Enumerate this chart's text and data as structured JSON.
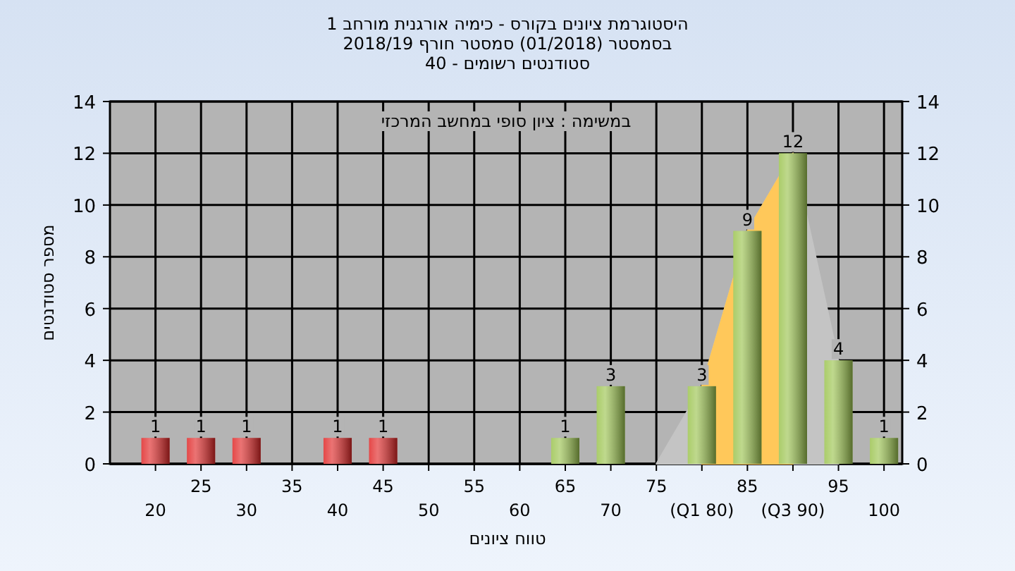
{
  "chart_data": {
    "type": "bar",
    "title": "היסטוגרמת ציונים בקורס - כימיה אורגנית מורחב 1",
    "subtitle": "בסמסטר  (01/2018)  סמסטר חורף 2018/19\nסטודנטים רשומים - 40",
    "xlabel": "טווח ציונים",
    "ylabel": "מספר סטודנטים",
    "annotations": [
      "במשימה : ציון סופי במחשב המרכזי"
    ],
    "categories": [
      "20",
      "25",
      "30",
      "35",
      "40",
      "45",
      "50",
      "55",
      "60",
      "65",
      "70",
      "75",
      "(Q1 80)",
      "85",
      "(Q3 90)",
      "95",
      "100"
    ],
    "series": [
      {
        "type": "area",
        "color": "#c4c4c4",
        "values": [
          null,
          null,
          null,
          null,
          null,
          null,
          null,
          null,
          null,
          null,
          null,
          0,
          3,
          9,
          12,
          4,
          null
        ]
      },
      {
        "type": "area",
        "color": "#ffc85a",
        "values": [
          null,
          null,
          null,
          null,
          null,
          null,
          null,
          null,
          null,
          null,
          null,
          null,
          3,
          9,
          12,
          null,
          null
        ]
      },
      {
        "colors": [
          "#e02828",
          "#e02828",
          "#e02828",
          "#e02828",
          "#e02828",
          "#e02828",
          "#9cc450",
          "#9cc450",
          "#9cc450",
          "#9cc450",
          "#9cc450",
          "#9cc450",
          "#9cc450",
          "#9cc450",
          "#9cc450",
          "#9cc450",
          "#9cc450"
        ],
        "values": [
          1,
          1,
          1,
          0,
          1,
          1,
          0,
          0,
          0,
          1,
          3,
          0,
          3,
          9,
          12,
          4,
          1
        ],
        "value_labels": [
          "1",
          "1",
          "1",
          null,
          "1",
          "1",
          null,
          null,
          null,
          "1",
          "3",
          null,
          "3",
          "9",
          "12",
          "4",
          "1"
        ]
      }
    ],
    "ylim": [
      0,
      14
    ],
    "yticks": [
      0,
      2,
      4,
      6,
      8,
      10,
      12,
      14
    ],
    "y2lim": [
      0,
      14
    ],
    "y2ticks": [
      0,
      2,
      4,
      6,
      8,
      10,
      12,
      14
    ],
    "grid": true
  }
}
